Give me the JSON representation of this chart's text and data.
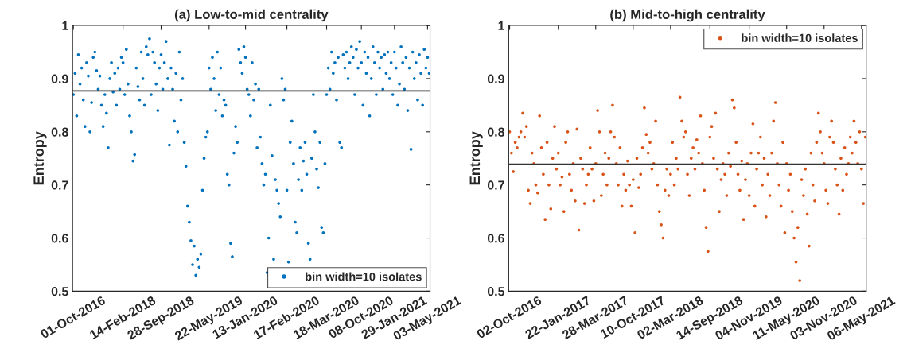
{
  "chart_data": [
    {
      "type": "scatter",
      "title": "(a) Low-to-mid centrality",
      "ylabel": "Entropy",
      "ylim": [
        0.5,
        1
      ],
      "yticks": [
        0.5,
        0.6,
        0.7,
        0.8,
        0.9,
        1
      ],
      "categories": [
        "01-Oct-2016",
        null,
        null,
        null,
        null,
        null,
        null,
        null,
        null,
        null,
        null,
        null,
        null,
        null,
        null,
        null,
        null,
        null,
        null,
        null,
        null,
        null,
        null,
        null,
        null,
        null,
        null,
        null,
        null,
        null,
        "14-Feb-2018",
        null,
        null,
        null,
        null,
        null,
        null,
        null,
        null,
        null,
        null,
        null,
        null,
        null,
        null,
        null,
        null,
        null,
        null,
        null,
        null,
        null,
        null,
        "28-Sep-2018",
        null,
        null,
        null,
        null,
        null,
        null,
        null,
        null,
        null,
        null,
        null,
        null,
        null,
        null,
        null,
        null,
        null,
        null,
        null,
        null,
        null,
        null,
        null,
        null,
        null,
        null,
        null,
        null,
        "22-May-2019",
        null,
        null,
        null,
        null,
        null,
        null,
        null,
        null,
        null,
        null,
        null,
        null,
        null,
        null,
        null,
        null,
        null,
        null,
        null,
        null,
        null,
        "13-Jan-2020",
        null,
        null,
        null,
        null,
        null,
        null,
        null,
        null,
        null,
        null,
        null,
        null,
        null,
        null,
        null,
        null,
        null,
        null,
        null,
        null,
        null,
        null,
        null,
        null,
        "17-Feb-2020",
        null,
        null,
        null,
        null,
        null,
        null,
        null,
        null,
        null,
        null,
        null,
        null,
        null,
        null,
        null,
        null,
        null,
        null,
        null,
        null,
        null,
        null,
        null,
        "18-Mar-2020",
        null,
        null,
        null,
        null,
        null,
        null,
        null,
        null,
        null,
        null,
        null,
        null,
        null,
        null,
        null,
        null,
        null,
        null,
        null,
        null,
        "08-Oct-2020",
        null,
        null,
        null,
        null,
        null,
        null,
        null,
        null,
        null,
        null,
        null,
        null,
        null,
        null,
        null,
        null,
        null,
        null,
        null,
        "29-Jan-2021",
        null,
        null,
        null,
        null,
        null,
        null,
        null,
        null,
        null,
        null,
        null,
        null,
        null,
        null,
        null,
        null,
        null,
        null,
        null,
        "03-May-2021",
        null
      ],
      "grid": false,
      "legend": "bottom right",
      "marker": "circle",
      "ref_lines": [
        {
          "axis": "y",
          "value": 0.877,
          "label": null,
          "color": "#333333"
        }
      ],
      "series": [
        {
          "name": "bin width=10 isolates",
          "color": "#0072bd",
          "values": [
            0.87,
            0.91,
            0.83,
            0.945,
            0.89,
            0.92,
            0.86,
            0.81,
            0.93,
            0.905,
            0.8,
            0.855,
            0.94,
            0.95,
            0.915,
            0.88,
            0.905,
            0.85,
            0.81,
            0.87,
            0.835,
            0.77,
            0.9,
            0.93,
            0.875,
            0.91,
            0.85,
            0.92,
            0.88,
            0.94,
            0.93,
            0.87,
            0.955,
            0.89,
            0.83,
            0.8,
            0.745,
            0.757,
            0.92,
            0.885,
            0.86,
            0.95,
            0.9,
            0.85,
            0.96,
            0.945,
            0.975,
            0.87,
            0.95,
            0.93,
            0.89,
            0.84,
            0.92,
            0.945,
            0.88,
            0.93,
            0.97,
            0.9,
            0.775,
            0.92,
            0.88,
            0.82,
            0.91,
            0.8,
            0.95,
            0.86,
            0.9,
            0.78,
            0.735,
            0.66,
            0.63,
            0.595,
            0.55,
            0.585,
            0.53,
            0.56,
            0.545,
            0.57,
            0.69,
            0.75,
            0.79,
            0.8,
            0.92,
            0.88,
            0.94,
            0.9,
            0.84,
            0.95,
            0.87,
            0.92,
            0.83,
            0.86,
            0.85,
            0.72,
            0.7,
            0.59,
            0.565,
            0.76,
            0.81,
            0.78,
            0.955,
            0.93,
            0.91,
            0.96,
            0.94,
            0.88,
            0.87,
            0.83,
            0.93,
            0.86,
            0.89,
            0.77,
            0.88,
            0.79,
            0.74,
            0.7,
            0.72,
            0.535,
            0.6,
            0.85,
            0.755,
            0.56,
            0.71,
            0.69,
            0.665,
            0.64,
            0.9,
            0.86,
            0.88,
            0.69,
            0.555,
            0.78,
            0.82,
            0.74,
            0.63,
            0.61,
            0.71,
            0.77,
            0.69,
            0.745,
            0.78,
            0.72,
            0.59,
            0.56,
            0.75,
            0.87,
            0.8,
            0.73,
            0.695,
            0.78,
            0.62,
            0.61,
            0.74,
            0.87,
            0.92,
            0.88,
            0.95,
            0.91,
            0.93,
            0.86,
            0.94,
            0.78,
            0.77,
            0.945,
            0.92,
            0.95,
            0.9,
            0.93,
            0.96,
            0.94,
            0.87,
            0.955,
            0.92,
            0.97,
            0.93,
            0.85,
            0.95,
            0.91,
            0.94,
            0.83,
            0.9,
            0.96,
            0.93,
            0.87,
            0.95,
            0.92,
            0.94,
            0.88,
            0.945,
            0.91,
            0.95,
            0.9,
            0.93,
            0.87,
            0.95,
            0.92,
            0.85,
            0.89,
            0.96,
            0.93,
            0.88,
            0.94,
            0.84,
            0.92,
            0.767,
            0.95,
            0.9,
            0.93,
            0.86,
            0.945,
            0.91,
            0.85,
            0.955,
            0.92,
            0.94,
            0.91
          ]
        }
      ]
    },
    {
      "type": "scatter",
      "title": "(b) Mid-to-high centrality",
      "ylabel": "Entropy",
      "ylim": [
        0.5,
        1
      ],
      "yticks": [
        0.5,
        0.6,
        0.7,
        0.8,
        0.9,
        1
      ],
      "categories": [
        "02-Oct-2016",
        null,
        null,
        null,
        null,
        null,
        null,
        null,
        null,
        null,
        null,
        null,
        null,
        null,
        null,
        null,
        null,
        null,
        null,
        null,
        null,
        null,
        null,
        null,
        null,
        null,
        "22-Jan-2017",
        null,
        null,
        null,
        null,
        null,
        null,
        null,
        null,
        null,
        null,
        null,
        null,
        null,
        null,
        null,
        null,
        null,
        null,
        null,
        "28-Mar-2017",
        null,
        null,
        null,
        null,
        null,
        null,
        null,
        null,
        null,
        null,
        null,
        null,
        null,
        null,
        null,
        null,
        null,
        null,
        null,
        "10-Oct-2017",
        null,
        null,
        null,
        null,
        null,
        null,
        null,
        null,
        null,
        null,
        null,
        null,
        null,
        null,
        null,
        null,
        null,
        null,
        null,
        "02-Mar-2018",
        null,
        null,
        null,
        null,
        null,
        null,
        null,
        null,
        null,
        null,
        null,
        null,
        null,
        null,
        null,
        null,
        null,
        null,
        null,
        null,
        "14-Sep-2018",
        null,
        null,
        null,
        null,
        null,
        null,
        null,
        null,
        null,
        null,
        null,
        null,
        null,
        null,
        null,
        null,
        null,
        null,
        null,
        null,
        "04-Nov-2019",
        null,
        null,
        null,
        null,
        null,
        null,
        null,
        null,
        null,
        null,
        null,
        null,
        null,
        null,
        null,
        null,
        null,
        null,
        null,
        "11-May-2020",
        null,
        null,
        null,
        null,
        null,
        null,
        null,
        null,
        null,
        null,
        null,
        null,
        null,
        null,
        null,
        null,
        null,
        null,
        null,
        "03-Nov-2020",
        null,
        null,
        null,
        null,
        null,
        null,
        null,
        null,
        null,
        null,
        null,
        null,
        null,
        null,
        null,
        null,
        null,
        null,
        null,
        "06-May-2021",
        null,
        null
      ],
      "grid": false,
      "legend": "top right",
      "marker": "circle",
      "ref_lines": [
        {
          "axis": "y",
          "value": 0.739,
          "label": null,
          "color": "#333333"
        }
      ],
      "series": [
        {
          "name": "bin width=10 isolates",
          "color": "#d95319",
          "values": [
            0.8,
            0.76,
            0.725,
            0.78,
            0.77,
            0.79,
            0.8,
            0.835,
            0.79,
            0.81,
            0.69,
            0.665,
            0.76,
            0.74,
            0.7,
            0.685,
            0.83,
            0.77,
            0.72,
            0.635,
            0.78,
            0.7,
            0.655,
            0.75,
            0.81,
            0.73,
            0.76,
            0.7,
            0.715,
            0.65,
            0.78,
            0.8,
            0.72,
            0.69,
            0.74,
            0.67,
            0.805,
            0.615,
            0.75,
            0.73,
            0.665,
            0.7,
            0.72,
            0.77,
            0.73,
            0.67,
            0.74,
            0.84,
            0.8,
            0.68,
            0.72,
            0.76,
            0.7,
            0.75,
            0.8,
            0.85,
            0.79,
            0.74,
            0.7,
            0.77,
            0.66,
            0.72,
            0.69,
            0.745,
            0.7,
            0.66,
            0.71,
            0.61,
            0.75,
            0.695,
            0.72,
            0.77,
            0.845,
            0.795,
            0.76,
            0.78,
            0.73,
            0.74,
            0.82,
            0.7,
            0.65,
            0.625,
            0.6,
            0.69,
            0.73,
            0.68,
            0.72,
            0.78,
            0.7,
            0.75,
            0.73,
            0.865,
            0.82,
            0.79,
            0.8,
            0.72,
            0.68,
            0.75,
            0.77,
            0.73,
            0.785,
            0.76,
            0.83,
            0.74,
            0.69,
            0.62,
            0.575,
            0.79,
            0.81,
            0.75,
            0.835,
            0.73,
            0.65,
            0.71,
            0.74,
            0.72,
            0.68,
            0.76,
            0.735,
            0.86,
            0.845,
            0.78,
            0.72,
            0.69,
            0.745,
            0.635,
            0.71,
            0.74,
            0.68,
            0.76,
            0.815,
            0.66,
            0.73,
            0.76,
            0.79,
            0.7,
            0.75,
            0.64,
            0.72,
            0.68,
            0.76,
            0.82,
            0.855,
            0.74,
            0.7,
            0.66,
            0.78,
            0.61,
            0.74,
            0.69,
            0.72,
            0.65,
            0.6,
            0.555,
            0.62,
            0.52,
            0.71,
            0.68,
            0.73,
            0.645,
            0.585,
            0.76,
            0.7,
            0.67,
            0.78,
            0.835,
            0.8,
            0.76,
            0.74,
            0.69,
            0.665,
            0.79,
            0.82,
            0.78,
            0.73,
            0.7,
            0.645,
            0.75,
            0.69,
            0.77,
            0.72,
            0.74,
            0.79,
            0.76,
            0.82,
            0.78,
            0.74,
            0.8,
            0.73,
            0.665,
            0.79
          ]
        }
      ]
    }
  ]
}
